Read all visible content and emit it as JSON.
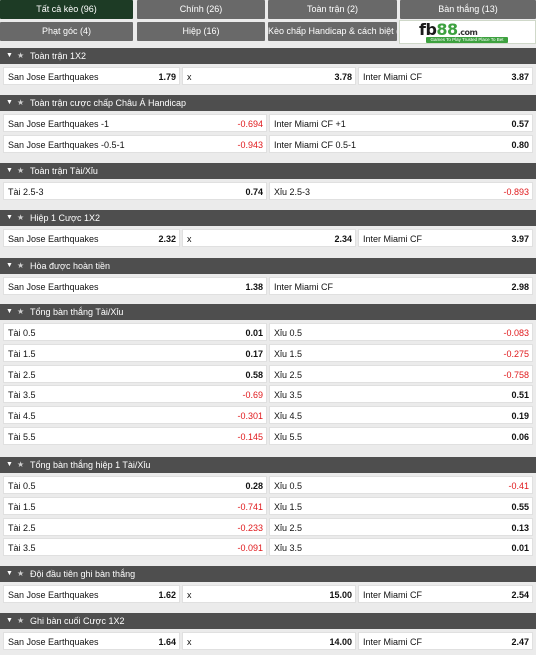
{
  "tabs": [
    {
      "label": "Tất cả kèo (96)",
      "active": true
    },
    {
      "label": "Chính (26)",
      "active": false
    },
    {
      "label": "Toàn trận (2)",
      "active": false
    },
    {
      "label": "Bàn thắng (13)",
      "active": false
    },
    {
      "label": "Phạt góc (4)",
      "active": false
    },
    {
      "label": "Hiệp (16)",
      "active": false
    },
    {
      "label": "Kèo chấp Handicap & cách biệt (2)",
      "active": false
    }
  ],
  "logo": {
    "main_a": "fb",
    "main_b": "88",
    "suffix": ".com",
    "tagline": "Games To Play Trusted Place To Bet"
  },
  "sections": [
    {
      "title": "Toàn trận 1X2",
      "layout": "three",
      "rows": [
        [
          {
            "label": "San Jose Earthquakes",
            "value": "1.79"
          },
          {
            "label": "x",
            "value": "3.78"
          },
          {
            "label": "Inter Miami CF",
            "value": "3.87"
          }
        ]
      ]
    },
    {
      "title": "Toàn trận cược chấp Châu Á Handicap",
      "layout": "two",
      "rows": [
        [
          {
            "label": "San Jose Earthquakes -1",
            "value": "-0.694"
          },
          {
            "label": "Inter Miami CF +1",
            "value": "0.57"
          }
        ],
        [
          {
            "label": "San Jose Earthquakes -0.5-1",
            "value": "-0.943"
          },
          {
            "label": "Inter Miami CF 0.5-1",
            "value": "0.80"
          }
        ]
      ]
    },
    {
      "title": "Toàn trận Tài/Xỉu",
      "layout": "two",
      "rows": [
        [
          {
            "label": "Tài 2.5-3",
            "value": "0.74"
          },
          {
            "label": "Xỉu 2.5-3",
            "value": "-0.893"
          }
        ]
      ]
    },
    {
      "title": "Hiệp 1 Cược 1X2",
      "layout": "three",
      "rows": [
        [
          {
            "label": "San Jose Earthquakes",
            "value": "2.32"
          },
          {
            "label": "x",
            "value": "2.34"
          },
          {
            "label": "Inter Miami CF",
            "value": "3.97"
          }
        ]
      ]
    },
    {
      "title": "Hòa được hoàn tiền",
      "layout": "two",
      "rows": [
        [
          {
            "label": "San Jose Earthquakes",
            "value": "1.38"
          },
          {
            "label": "Inter Miami CF",
            "value": "2.98"
          }
        ]
      ]
    },
    {
      "title": "Tổng bàn thắng Tài/Xỉu",
      "layout": "two",
      "rows": [
        [
          {
            "label": "Tài 0.5",
            "value": "0.01"
          },
          {
            "label": "Xỉu 0.5",
            "value": "-0.083"
          }
        ],
        [
          {
            "label": "Tài 1.5",
            "value": "0.17"
          },
          {
            "label": "Xỉu 1.5",
            "value": "-0.275"
          }
        ],
        [
          {
            "label": "Tài 2.5",
            "value": "0.58"
          },
          {
            "label": "Xỉu 2.5",
            "value": "-0.758"
          }
        ],
        [
          {
            "label": "Tài 3.5",
            "value": "-0.69"
          },
          {
            "label": "Xỉu 3.5",
            "value": "0.51"
          }
        ],
        [
          {
            "label": "Tài 4.5",
            "value": "-0.301"
          },
          {
            "label": "Xỉu 4.5",
            "value": "0.19"
          }
        ],
        [
          {
            "label": "Tài 5.5",
            "value": "-0.145"
          },
          {
            "label": "Xỉu 5.5",
            "value": "0.06"
          }
        ]
      ]
    },
    {
      "title": "Tổng bàn thắng hiệp 1 Tài/Xỉu",
      "layout": "two",
      "rows": [
        [
          {
            "label": "Tài 0.5",
            "value": "0.28"
          },
          {
            "label": "Xỉu 0.5",
            "value": "-0.41"
          }
        ],
        [
          {
            "label": "Tài 1.5",
            "value": "-0.741"
          },
          {
            "label": "Xỉu 1.5",
            "value": "0.55"
          }
        ],
        [
          {
            "label": "Tài 2.5",
            "value": "-0.233"
          },
          {
            "label": "Xỉu 2.5",
            "value": "0.13"
          }
        ],
        [
          {
            "label": "Tài 3.5",
            "value": "-0.091"
          },
          {
            "label": "Xỉu 3.5",
            "value": "0.01"
          }
        ]
      ]
    },
    {
      "title": "Đội đầu tiên ghi bàn thắng",
      "layout": "three",
      "rows": [
        [
          {
            "label": "San Jose Earthquakes",
            "value": "1.62"
          },
          {
            "label": "x",
            "value": "15.00"
          },
          {
            "label": "Inter Miami CF",
            "value": "2.54"
          }
        ]
      ]
    },
    {
      "title": "Ghi bàn cuối Cược 1X2",
      "layout": "three",
      "rows": [
        [
          {
            "label": "San Jose Earthquakes",
            "value": "1.64"
          },
          {
            "label": "x",
            "value": "14.00"
          },
          {
            "label": "Inter Miami CF",
            "value": "2.47"
          }
        ]
      ]
    }
  ],
  "icons": {
    "collapse": "chevron-down-icon",
    "favorite": "star-icon"
  },
  "colors": {
    "active_tab": "#1d3b25",
    "tab": "#696969",
    "header": "#4e4e4e",
    "negative": "#e0191c",
    "logo_green": "#3da13f"
  }
}
